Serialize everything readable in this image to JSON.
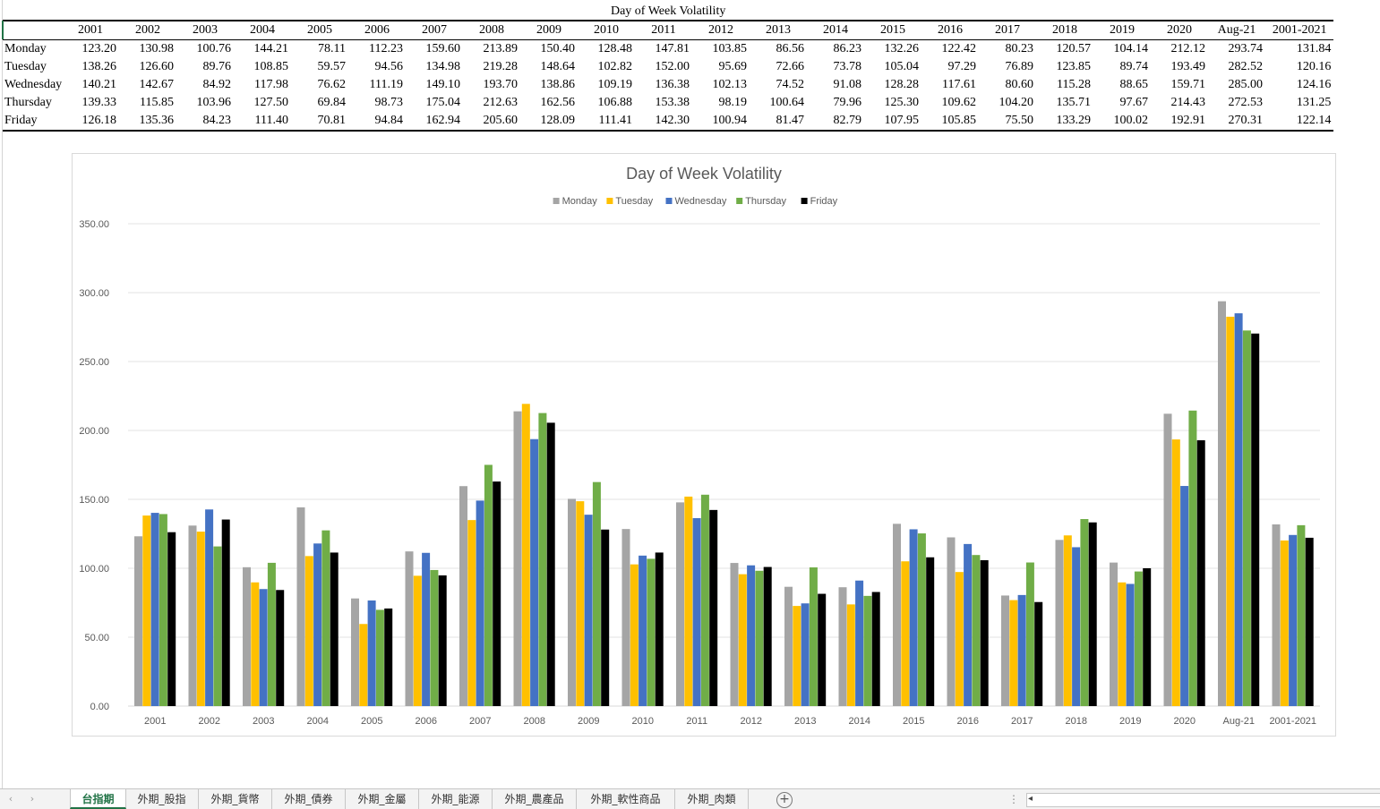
{
  "table": {
    "title": "Day of Week Volatility",
    "years": [
      "2001",
      "2002",
      "2003",
      "2004",
      "2005",
      "2006",
      "2007",
      "2008",
      "2009",
      "2010",
      "2011",
      "2012",
      "2013",
      "2014",
      "2015",
      "2016",
      "2017",
      "2018",
      "2019",
      "2020",
      "Aug-21",
      "2001-2021"
    ],
    "rows": [
      {
        "label": "Monday",
        "values": [
          "123.20",
          "130.98",
          "100.76",
          "144.21",
          "78.11",
          "112.23",
          "159.60",
          "213.89",
          "150.40",
          "128.48",
          "147.81",
          "103.85",
          "86.56",
          "86.23",
          "132.26",
          "122.42",
          "80.23",
          "120.57",
          "104.14",
          "212.12",
          "293.74",
          "131.84"
        ]
      },
      {
        "label": "Tuesday",
        "values": [
          "138.26",
          "126.60",
          "89.76",
          "108.85",
          "59.57",
          "94.56",
          "134.98",
          "219.28",
          "148.64",
          "102.82",
          "152.00",
          "95.69",
          "72.66",
          "73.78",
          "105.04",
          "97.29",
          "76.89",
          "123.85",
          "89.74",
          "193.49",
          "282.52",
          "120.16"
        ]
      },
      {
        "label": "Wednesday",
        "values": [
          "140.21",
          "142.67",
          "84.92",
          "117.98",
          "76.62",
          "111.19",
          "149.10",
          "193.70",
          "138.86",
          "109.19",
          "136.38",
          "102.13",
          "74.52",
          "91.08",
          "128.28",
          "117.61",
          "80.60",
          "115.28",
          "88.65",
          "159.71",
          "285.00",
          "124.16"
        ]
      },
      {
        "label": "Thursday",
        "values": [
          "139.33",
          "115.85",
          "103.96",
          "127.50",
          "69.84",
          "98.73",
          "175.04",
          "212.63",
          "162.56",
          "106.88",
          "153.38",
          "98.19",
          "100.64",
          "79.96",
          "125.30",
          "109.62",
          "104.20",
          "135.71",
          "97.67",
          "214.43",
          "272.53",
          "131.25"
        ]
      },
      {
        "label": "Friday",
        "values": [
          "126.18",
          "135.36",
          "84.23",
          "111.40",
          "70.81",
          "94.84",
          "162.94",
          "205.60",
          "128.09",
          "111.41",
          "142.30",
          "100.94",
          "81.47",
          "82.79",
          "107.95",
          "105.85",
          "75.50",
          "133.29",
          "100.02",
          "192.91",
          "270.31",
          "122.14"
        ]
      }
    ]
  },
  "chart_data": {
    "type": "bar",
    "title": "Day of Week Volatility",
    "xlabel": "",
    "ylabel": "",
    "ylim": [
      0,
      350
    ],
    "yticks": [
      "0.00",
      "50.00",
      "100.00",
      "150.00",
      "200.00",
      "250.00",
      "300.00",
      "350.00"
    ],
    "grid": true,
    "legend_position": "top",
    "categories": [
      "2001",
      "2002",
      "2003",
      "2004",
      "2005",
      "2006",
      "2007",
      "2008",
      "2009",
      "2010",
      "2011",
      "2012",
      "2013",
      "2014",
      "2015",
      "2016",
      "2017",
      "2018",
      "2019",
      "2020",
      "Aug-21",
      "2001-2021"
    ],
    "series": [
      {
        "name": "Monday",
        "color": "#A5A5A5",
        "values": [
          123.2,
          130.98,
          100.76,
          144.21,
          78.11,
          112.23,
          159.6,
          213.89,
          150.4,
          128.48,
          147.81,
          103.85,
          86.56,
          86.23,
          132.26,
          122.42,
          80.23,
          120.57,
          104.14,
          212.12,
          293.74,
          131.84
        ]
      },
      {
        "name": "Tuesday",
        "color": "#FFC000",
        "values": [
          138.26,
          126.6,
          89.76,
          108.85,
          59.57,
          94.56,
          134.98,
          219.28,
          148.64,
          102.82,
          152.0,
          95.69,
          72.66,
          73.78,
          105.04,
          97.29,
          76.89,
          123.85,
          89.74,
          193.49,
          282.52,
          120.16
        ]
      },
      {
        "name": "Wednesday",
        "color": "#4472C4",
        "values": [
          140.21,
          142.67,
          84.92,
          117.98,
          76.62,
          111.19,
          149.1,
          193.7,
          138.86,
          109.19,
          136.38,
          102.13,
          74.52,
          91.08,
          128.28,
          117.61,
          80.6,
          115.28,
          88.65,
          159.71,
          285.0,
          124.16
        ]
      },
      {
        "name": "Thursday",
        "color": "#70AD47",
        "values": [
          139.33,
          115.85,
          103.96,
          127.5,
          69.84,
          98.73,
          175.04,
          212.63,
          162.56,
          106.88,
          153.38,
          98.19,
          100.64,
          79.96,
          125.3,
          109.62,
          104.2,
          135.71,
          97.67,
          214.43,
          272.53,
          131.25
        ]
      },
      {
        "name": "Friday",
        "color": "#000000",
        "values": [
          126.18,
          135.36,
          84.23,
          111.4,
          70.81,
          94.84,
          162.94,
          205.6,
          128.09,
          111.41,
          142.3,
          100.94,
          81.47,
          82.79,
          107.95,
          105.85,
          75.5,
          133.29,
          100.02,
          192.91,
          270.31,
          122.14
        ]
      }
    ]
  },
  "tabs": {
    "active": "台指期",
    "items": [
      "台指期",
      "外期_股指",
      "外期_貨幣",
      "外期_債券",
      "外期_金屬",
      "外期_能源",
      "外期_農產品",
      "外期_軟性商品",
      "外期_肉類"
    ],
    "add_label": "+",
    "dots": "⋮"
  },
  "icons": {
    "prev_sheet": "chevron-left-icon",
    "next_sheet": "chevron-right-icon",
    "add_sheet": "plus-circle-icon"
  }
}
